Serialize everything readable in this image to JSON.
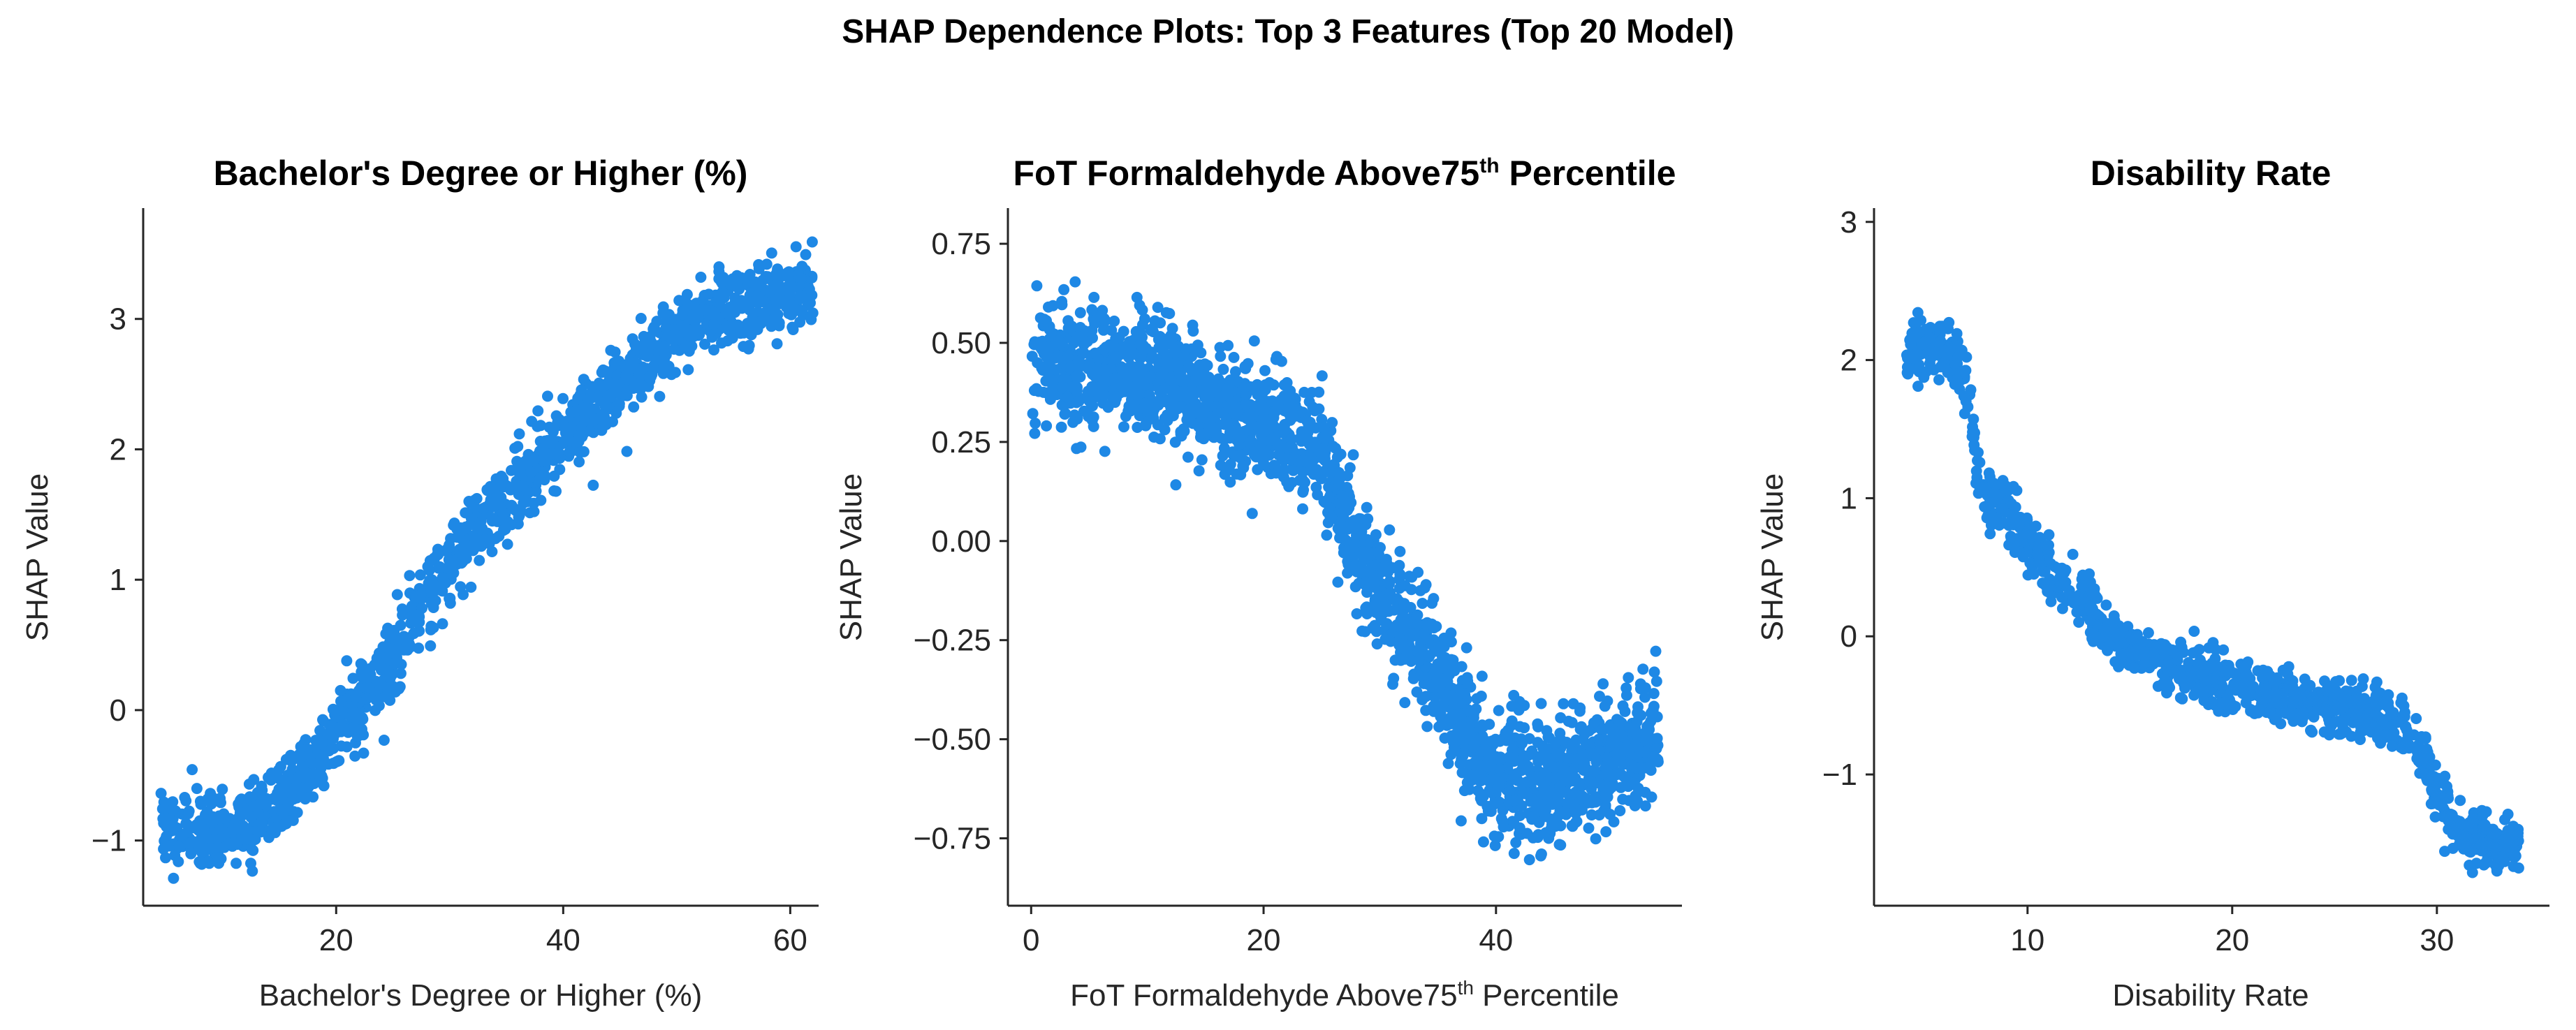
{
  "figure": {
    "suptitle": "SHAP Dependence Plots: Top 3 Features (Top 20 Model)",
    "point_color": "#1E88E5"
  },
  "chart_data": [
    {
      "type": "scatter",
      "title": "Bachelor's Degree or Higher (%)",
      "xlabel": "Bachelor's Degree or Higher (%)",
      "ylabel": "SHAP Value",
      "xlim": [
        3,
        62.5
      ],
      "ylim": [
        -1.5,
        3.85
      ],
      "xticks": [
        20,
        40,
        60
      ],
      "yticks": [
        -1,
        0,
        1,
        2,
        3
      ],
      "trend": [
        [
          4.5,
          -0.88
        ],
        [
          8,
          -0.95
        ],
        [
          10,
          -0.95
        ],
        [
          12,
          -0.85
        ],
        [
          15,
          -0.68
        ],
        [
          18,
          -0.4
        ],
        [
          20,
          -0.15
        ],
        [
          22,
          0.05
        ],
        [
          25,
          0.4
        ],
        [
          28,
          0.9
        ],
        [
          30,
          1.1
        ],
        [
          33,
          1.45
        ],
        [
          36,
          1.7
        ],
        [
          40,
          2.1
        ],
        [
          45,
          2.5
        ],
        [
          50,
          2.9
        ],
        [
          55,
          3.1
        ],
        [
          60,
          3.2
        ],
        [
          62,
          3.3
        ]
      ],
      "spread": 0.14,
      "count": 1500
    },
    {
      "type": "scatter",
      "title": "FoT Formaldehyde Above75th Percentile",
      "title_main": "FoT Formaldehyde Above75",
      "title_sup": "th",
      "title_end": " Percentile",
      "xlabel": "FoT Formaldehyde Above75th Percentile",
      "xlabel_main": "FoT Formaldehyde Above75",
      "xlabel_sup": "th",
      "xlabel_end": " Percentile",
      "ylabel": "SHAP Value",
      "xlim": [
        -2,
        56
      ],
      "ylim": [
        -0.92,
        0.84
      ],
      "xticks": [
        0,
        20,
        40
      ],
      "yticks": [
        -0.75,
        -0.5,
        -0.25,
        0.0,
        0.25,
        0.5,
        0.75
      ],
      "ytick_labels": [
        "−0.75",
        "−0.50",
        "−0.25",
        "0.00",
        "0.25",
        "0.50",
        "0.75"
      ],
      "trend": [
        [
          0,
          0.42
        ],
        [
          2,
          0.44
        ],
        [
          5,
          0.43
        ],
        [
          8,
          0.42
        ],
        [
          10,
          0.42
        ],
        [
          12,
          0.41
        ],
        [
          15,
          0.36
        ],
        [
          18,
          0.3
        ],
        [
          22,
          0.28
        ],
        [
          25,
          0.22
        ],
        [
          27,
          0.05
        ],
        [
          30,
          -0.12
        ],
        [
          33,
          -0.25
        ],
        [
          36,
          -0.38
        ],
        [
          38,
          -0.5
        ],
        [
          40,
          -0.6
        ],
        [
          43,
          -0.62
        ],
        [
          46,
          -0.6
        ],
        [
          50,
          -0.55
        ],
        [
          54,
          -0.5
        ]
      ],
      "spread": 0.075,
      "count": 2200
    },
    {
      "type": "scatter",
      "title": "Disability Rate",
      "xlabel": "Disability Rate",
      "ylabel": "SHAP Value",
      "xlim": [
        2.5,
        35.5
      ],
      "ylim": [
        -1.95,
        3.1
      ],
      "xticks": [
        10,
        20,
        30
      ],
      "yticks": [
        -1,
        0,
        1,
        2,
        3
      ],
      "trend": [
        [
          4,
          2.0
        ],
        [
          5,
          2.1
        ],
        [
          6,
          2.05
        ],
        [
          7,
          1.9
        ],
        [
          7.5,
          1.2
        ],
        [
          8,
          1.0
        ],
        [
          9,
          0.9
        ],
        [
          10,
          0.7
        ],
        [
          11,
          0.5
        ],
        [
          12,
          0.35
        ],
        [
          13,
          0.2
        ],
        [
          14,
          0.0
        ],
        [
          16,
          -0.15
        ],
        [
          18,
          -0.25
        ],
        [
          20,
          -0.35
        ],
        [
          22,
          -0.45
        ],
        [
          24,
          -0.5
        ],
        [
          26,
          -0.55
        ],
        [
          28,
          -0.6
        ],
        [
          29,
          -0.8
        ],
        [
          30,
          -1.1
        ],
        [
          31,
          -1.4
        ],
        [
          33,
          -1.55
        ],
        [
          34,
          -1.5
        ]
      ],
      "spread": 0.1,
      "count": 1200
    }
  ]
}
